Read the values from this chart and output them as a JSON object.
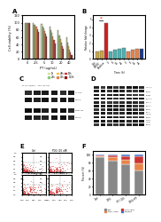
{
  "panel_A": {
    "title": "A",
    "groups": [
      "0",
      "2.5",
      "5",
      "10",
      "20",
      "40"
    ],
    "series": [
      {
        "label": "0h",
        "color": "#d4e09b",
        "values": [
          100,
          98,
          96,
          90,
          80,
          60
        ]
      },
      {
        "label": "24h",
        "color": "#90c978",
        "values": [
          100,
          95,
          90,
          80,
          65,
          45
        ]
      },
      {
        "label": "48h",
        "color": "#f5c242",
        "values": [
          100,
          93,
          85,
          72,
          55,
          35
        ]
      },
      {
        "label": "72h",
        "color": "#e8844a",
        "values": [
          100,
          88,
          78,
          62,
          45,
          25
        ]
      },
      {
        "label": "96h",
        "color": "#cc3333",
        "values": [
          100,
          82,
          70,
          52,
          35,
          18
        ]
      },
      {
        "label": "120h",
        "color": "#8b1a1a",
        "values": [
          100,
          75,
          62,
          42,
          28,
          12
        ]
      }
    ],
    "xlabel": "PT (ug/mL)",
    "ylabel": "Cell viability (%)",
    "ylim": [
      0,
      120
    ]
  },
  "panel_B": {
    "title": "B",
    "categories": [
      "Ctrl",
      "DMSO",
      "Positive",
      "0",
      "8",
      "12",
      "24",
      "0",
      "8",
      "12",
      "24"
    ],
    "colors": [
      "#c8a84b",
      "#c8a84b",
      "#cc2222",
      "#4db3b3",
      "#4db3b3",
      "#4db3b3",
      "#4db3b3",
      "#e8844a",
      "#e8844a",
      "#e8844a",
      "#1a3a8a"
    ],
    "values": [
      1.0,
      1.1,
      4.5,
      1.0,
      1.2,
      1.3,
      1.4,
      1.0,
      1.2,
      1.3,
      1.3
    ],
    "xlabel": "Time (h)",
    "ylabel": "Relative fold change",
    "ylim": [
      0,
      5.5
    ],
    "annotation": "*"
  },
  "panel_F": {
    "title": "F",
    "categories": [
      "Ctrl",
      "PDG",
      "PT (10)",
      "PDG+PT"
    ],
    "live": [
      93,
      85,
      75,
      60
    ],
    "early_apop": [
      4,
      8,
      12,
      18
    ],
    "late_apop": [
      2,
      5,
      10,
      17
    ],
    "necrosis": [
      1,
      2,
      3,
      5
    ],
    "colors": {
      "live": "#888888",
      "early": "#e8844a",
      "late": "#cc3333",
      "necrosis": "#4472c4"
    }
  },
  "bg_color": "#ffffff"
}
